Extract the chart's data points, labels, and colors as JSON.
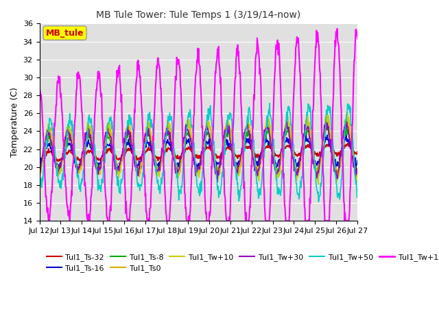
{
  "title": "MB Tule Tower: Tule Temps 1 (3/19/14-now)",
  "ylabel": "Temperature (C)",
  "ylim": [
    14,
    36
  ],
  "yticks": [
    14,
    16,
    18,
    20,
    22,
    24,
    26,
    28,
    30,
    32,
    34,
    36
  ],
  "xtick_labels": [
    "Jul 12",
    "Jul 13",
    "Jul 14",
    "Jul 15",
    "Jul 16",
    "Jul 17",
    "Jul 18",
    "Jul 19",
    "Jul 20",
    "Jul 21",
    "Jul 22",
    "Jul 23",
    "Jul 24",
    "Jul 25",
    "Jul 26",
    "Jul 27"
  ],
  "series": {
    "Tul1_Ts-32": {
      "color": "#cc0000",
      "lw": 1.5
    },
    "Tul1_Ts-16": {
      "color": "#0000cc",
      "lw": 1.2
    },
    "Tul1_Ts-8": {
      "color": "#00aa00",
      "lw": 1.2
    },
    "Tul1_Ts0": {
      "color": "#ddaa00",
      "lw": 1.2
    },
    "Tul1_Tw+10": {
      "color": "#cccc00",
      "lw": 1.2
    },
    "Tul1_Tw+30": {
      "color": "#9900bb",
      "lw": 1.2
    },
    "Tul1_Tw+50": {
      "color": "#00cccc",
      "lw": 1.2
    },
    "Tul1_Tw+100": {
      "color": "#ff00ff",
      "lw": 1.5
    }
  },
  "legend_box_text": "MB_tule",
  "legend_box_color": "#ffff00",
  "legend_box_text_color": "#cc0000",
  "bg_color": "#e0e0e0",
  "grid_color": "#ffffff",
  "n_days": 16,
  "base_temp": 21.2,
  "figsize": [
    6.4,
    4.8
  ],
  "dpi": 100
}
